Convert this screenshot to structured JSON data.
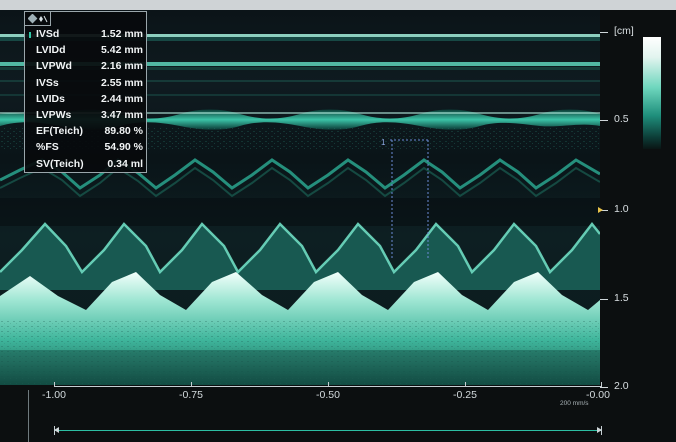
{
  "measurements": {
    "rows": [
      {
        "label": "IVSd",
        "value": "1.52 mm"
      },
      {
        "label": "LVIDd",
        "value": "5.42 mm"
      },
      {
        "label": "LVPWd",
        "value": "2.16 mm"
      },
      {
        "label": "IVSs",
        "value": "2.55 mm"
      },
      {
        "label": "LVIDs",
        "value": "2.44 mm"
      },
      {
        "label": "LVPWs",
        "value": "3.47 mm"
      },
      {
        "label": "EF(Teich)",
        "value": "89.80 %"
      },
      {
        "label": "%FS",
        "value": "54.90 %"
      },
      {
        "label": "SV(Teich)",
        "value": "0.34 ml"
      }
    ],
    "header_icon": "heart-settings-icon"
  },
  "depth_scale": {
    "unit": "[cm]",
    "labels": [
      "0.5",
      "1.0",
      "1.5",
      "2.0"
    ]
  },
  "time_axis": {
    "labels": [
      "-1.00",
      "-0.75",
      "-0.50",
      "-0.25",
      "-0.00"
    ],
    "speed": "200 mm/s"
  },
  "cursor_label": "1",
  "colors": {
    "accent": "#2fc8a6",
    "echo_bright": "#e8fbf6",
    "echo_mid": "#35b49b",
    "focus_marker": "#e8c24a",
    "background": "#0a0c0d"
  }
}
